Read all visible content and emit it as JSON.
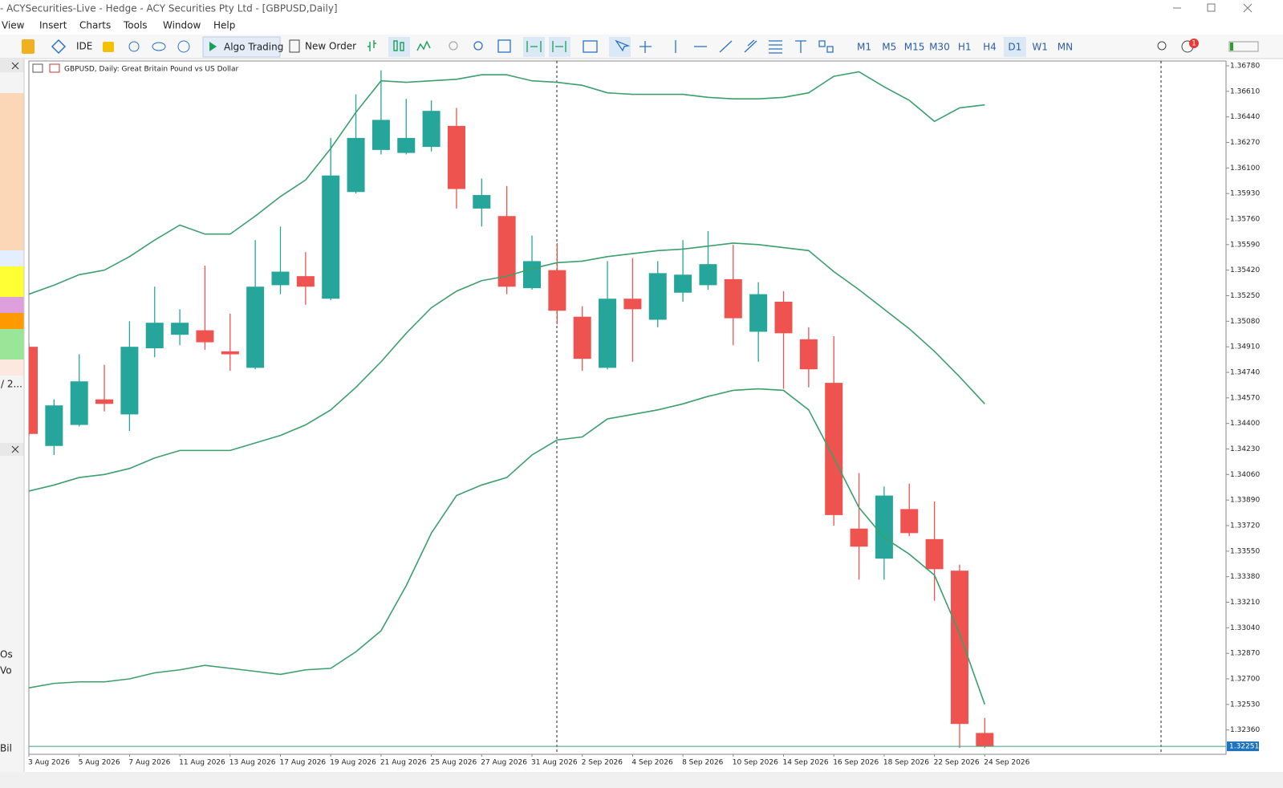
{
  "window": {
    "title": "- ACYSecurities-Live - Hedge - ACY Securities Pty Ltd - [GBPUSD,Daily]",
    "menu": [
      "View",
      "Insert",
      "Charts",
      "Tools",
      "Window",
      "Help"
    ],
    "toolbar": {
      "ide": "IDE",
      "algo_trading": "Algo Trading",
      "new_order": "New Order",
      "timeframes": [
        "M1",
        "M5",
        "M15",
        "M30",
        "H1",
        "H4",
        "D1",
        "W1",
        "MN"
      ],
      "active_timeframe": "D1"
    },
    "notification_count": 1,
    "side_panel": [
      "/ 2...",
      "Os",
      "Vo",
      "Bil"
    ]
  },
  "chart_data": {
    "type": "candlestick",
    "title": "GBPUSD, Daily:  Great Britain Pound vs US Dollar",
    "categories": [
      "3 Aug 2026",
      null,
      "5 Aug 2026",
      null,
      "7 Aug 2026",
      null,
      "11 Aug 2026",
      null,
      "13 Aug 2026",
      null,
      "17 Aug 2026",
      null,
      "19 Aug 2026",
      null,
      "21 Aug 2026",
      null,
      "25 Aug 2026",
      null,
      "27 Aug 2026",
      null,
      "31 Aug 2026",
      null,
      "2 Sep 2026",
      null,
      "4 Sep 2026",
      null,
      "8 Sep 2026",
      null,
      "10 Sep 2026",
      null,
      "14 Sep 2026",
      null,
      "16 Sep 2026",
      null,
      "18 Sep 2026",
      null,
      "22 Sep 2026",
      null,
      "24 Sep 2026"
    ],
    "open": [
      1.3491,
      1.3425,
      1.3439,
      1.3456,
      1.3446,
      1.349,
      1.3499,
      1.3502,
      1.3488,
      1.3477,
      1.3532,
      1.3538,
      1.3523,
      1.3594,
      1.3622,
      1.362,
      1.3624,
      1.3638,
      1.3583,
      1.3578,
      1.353,
      1.3542,
      1.3511,
      1.3477,
      1.3523,
      1.3509,
      1.3527,
      1.3532,
      1.3536,
      1.3501,
      1.3521,
      1.3496,
      1.3467,
      1.337,
      1.335,
      1.3383,
      1.3363,
      1.3342,
      1.3234
    ],
    "high": [
      1.3493,
      1.3456,
      1.3486,
      1.3479,
      1.3508,
      1.3531,
      1.3516,
      1.3545,
      1.3513,
      1.3562,
      1.3571,
      1.3554,
      1.363,
      1.3659,
      1.3675,
      1.3656,
      1.3655,
      1.365,
      1.3603,
      1.3598,
      1.3565,
      1.356,
      1.3518,
      1.3548,
      1.355,
      1.3548,
      1.3562,
      1.3568,
      1.3559,
      1.3534,
      1.3528,
      1.3504,
      1.3498,
      1.3407,
      1.3398,
      1.34,
      1.3388,
      1.3346,
      1.3244
    ],
    "low": [
      1.3432,
      1.3419,
      1.3438,
      1.3448,
      1.3435,
      1.3484,
      1.3492,
      1.3489,
      1.3475,
      1.3476,
      1.3526,
      1.3519,
      1.3522,
      1.3593,
      1.3619,
      1.3619,
      1.3621,
      1.3583,
      1.3571,
      1.3526,
      1.3529,
      1.3506,
      1.3475,
      1.3476,
      1.3481,
      1.3504,
      1.3521,
      1.3529,
      1.3492,
      1.3481,
      1.3463,
      1.3464,
      1.3372,
      1.3336,
      1.3336,
      1.3365,
      1.3322,
      1.3224,
      1.3224
    ],
    "close": [
      1.3433,
      1.3452,
      1.3468,
      1.3453,
      1.3491,
      1.3507,
      1.3507,
      1.3494,
      1.3486,
      1.3531,
      1.3541,
      1.3531,
      1.3605,
      1.363,
      1.3642,
      1.363,
      1.3648,
      1.3596,
      1.3592,
      1.3531,
      1.3548,
      1.3515,
      1.3483,
      1.3523,
      1.3516,
      1.354,
      1.3539,
      1.3546,
      1.351,
      1.3526,
      1.35,
      1.3476,
      1.3379,
      1.3358,
      1.3392,
      1.3367,
      1.3343,
      1.324,
      1.32251
    ],
    "up_color": "#26a69a",
    "down_color": "#ef5350",
    "bands": [
      {
        "color": "#3ba06c",
        "values": [
          1.3526,
          1.3532,
          1.3539,
          1.3542,
          1.3551,
          1.3562,
          1.3572,
          1.3566,
          1.3566,
          1.3578,
          1.3591,
          1.3602,
          1.3623,
          1.3647,
          1.3668,
          1.3667,
          1.3668,
          1.3669,
          1.3672,
          1.3672,
          1.3668,
          1.3667,
          1.3665,
          1.366,
          1.3659,
          1.3659,
          1.3659,
          1.3657,
          1.3656,
          1.3656,
          1.3657,
          1.366,
          1.3671,
          1.3674,
          1.3664,
          1.3655,
          1.3641,
          1.365,
          1.3652
        ]
      },
      {
        "color": "#3ba06c",
        "values": [
          1.3395,
          1.3399,
          1.3404,
          1.3406,
          1.341,
          1.3417,
          1.3422,
          1.3422,
          1.3422,
          1.3427,
          1.3432,
          1.3439,
          1.3449,
          1.3464,
          1.3481,
          1.35,
          1.3517,
          1.3528,
          1.3535,
          1.3538,
          1.3543,
          1.3547,
          1.3548,
          1.3551,
          1.3553,
          1.3555,
          1.3556,
          1.3558,
          1.356,
          1.3559,
          1.3557,
          1.3555,
          1.3541,
          1.3529,
          1.3516,
          1.3503,
          1.3488,
          1.3471,
          1.3453
        ]
      },
      {
        "color": "#3ba06c",
        "values": [
          1.3264,
          1.3267,
          1.3268,
          1.3268,
          1.327,
          1.3274,
          1.3276,
          1.3279,
          1.3277,
          1.3275,
          1.3273,
          1.3276,
          1.3277,
          1.3288,
          1.3302,
          1.3332,
          1.3367,
          1.3392,
          1.3399,
          1.3404,
          1.3419,
          1.3429,
          1.3431,
          1.3443,
          1.3446,
          1.3449,
          1.3453,
          1.3458,
          1.3462,
          1.3463,
          1.3462,
          1.3449,
          1.3417,
          1.3384,
          1.3364,
          1.3353,
          1.3339,
          1.33,
          1.3253
        ]
      }
    ],
    "last_price": 1.32251,
    "last_price_color": "#1e73be",
    "ylim": [
      1.32198,
      1.36812
    ],
    "yticks": [
      {
        "value": 1.3678,
        "label": "1.36780"
      },
      {
        "value": 1.3661,
        "label": "1.36610"
      },
      {
        "value": 1.3644,
        "label": "1.36440"
      },
      {
        "value": 1.3627,
        "label": "1.36270"
      },
      {
        "value": 1.361,
        "label": "1.36100"
      },
      {
        "value": 1.3593,
        "label": "1.35930"
      },
      {
        "value": 1.3576,
        "label": "1.35760"
      },
      {
        "value": 1.3559,
        "label": "1.35590"
      },
      {
        "value": 1.3542,
        "label": "1.35420"
      },
      {
        "value": 1.3525,
        "label": "1.35250"
      },
      {
        "value": 1.3508,
        "label": "1.35080"
      },
      {
        "value": 1.3491,
        "label": "1.34910"
      },
      {
        "value": 1.3474,
        "label": "1.34740"
      },
      {
        "value": 1.3457,
        "label": "1.34570"
      },
      {
        "value": 1.344,
        "label": "1.34400"
      },
      {
        "value": 1.3423,
        "label": "1.34230"
      },
      {
        "value": 1.3406,
        "label": "1.34060"
      },
      {
        "value": 1.3389,
        "label": "1.33890"
      },
      {
        "value": 1.3372,
        "label": "1.33720"
      },
      {
        "value": 1.3355,
        "label": "1.33550"
      },
      {
        "value": 1.3338,
        "label": "1.33380"
      },
      {
        "value": 1.3321,
        "label": "1.33210"
      },
      {
        "value": 1.3304,
        "label": "1.33040"
      },
      {
        "value": 1.3287,
        "label": "1.32870"
      },
      {
        "value": 1.327,
        "label": "1.32700"
      },
      {
        "value": 1.3253,
        "label": "1.32530"
      },
      {
        "value": 1.3236,
        "label": "1.32360"
      }
    ],
    "grid": false
  }
}
